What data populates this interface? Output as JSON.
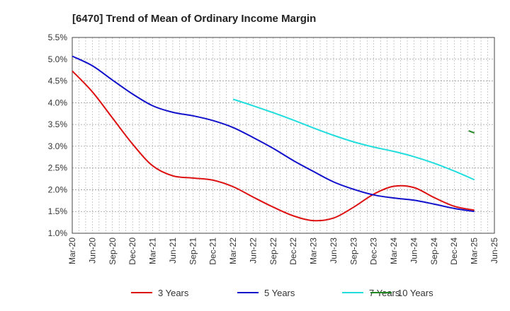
{
  "chart_data": {
    "type": "line",
    "title": "[6470]  Trend of Mean of Ordinary Income Margin",
    "xlabel": "",
    "ylabel": "",
    "ylim": [
      1.0,
      5.5
    ],
    "y_ticks": [
      "1.0%",
      "1.5%",
      "2.0%",
      "2.5%",
      "3.0%",
      "3.5%",
      "4.0%",
      "4.5%",
      "5.0%",
      "5.5%"
    ],
    "y_tick_values": [
      1.0,
      1.5,
      2.0,
      2.5,
      3.0,
      3.5,
      4.0,
      4.5,
      5.0,
      5.5
    ],
    "categories": [
      "Mar-20",
      "Jun-20",
      "Sep-20",
      "Dec-20",
      "Mar-21",
      "Jun-21",
      "Sep-21",
      "Dec-21",
      "Mar-22",
      "Jun-22",
      "Sep-22",
      "Dec-22",
      "Mar-23",
      "Jun-23",
      "Sep-23",
      "Dec-23",
      "Mar-24",
      "Jun-24",
      "Sep-24",
      "Dec-24",
      "Mar-25",
      "Jun-25"
    ],
    "grid": true,
    "legend_position": "bottom",
    "series": [
      {
        "name": "3 Years",
        "color": "#dd1111",
        "values": [
          4.73,
          4.25,
          3.65,
          3.05,
          2.55,
          2.32,
          2.27,
          2.22,
          2.07,
          1.83,
          1.6,
          1.4,
          1.29,
          1.35,
          1.6,
          1.9,
          2.08,
          2.05,
          1.82,
          1.62,
          1.53,
          null
        ]
      },
      {
        "name": "5 Years",
        "color": "#1111cc",
        "values": [
          5.07,
          4.85,
          4.52,
          4.2,
          3.93,
          3.78,
          3.7,
          3.59,
          3.43,
          3.2,
          2.95,
          2.67,
          2.42,
          2.18,
          2.01,
          1.88,
          1.81,
          1.76,
          1.67,
          1.57,
          1.5,
          null
        ]
      },
      {
        "name": "7 Years",
        "color": "#22dddd",
        "values": [
          null,
          null,
          null,
          null,
          null,
          null,
          null,
          null,
          4.08,
          3.93,
          3.77,
          3.6,
          3.42,
          3.25,
          3.1,
          2.98,
          2.88,
          2.76,
          2.61,
          2.43,
          2.23,
          null
        ]
      },
      {
        "name": "10 Years",
        "color": "#228822",
        "values": [
          null,
          null,
          null,
          null,
          null,
          null,
          null,
          null,
          null,
          null,
          null,
          null,
          null,
          null,
          null,
          null,
          null,
          null,
          null,
          null,
          3.33,
          null
        ]
      }
    ]
  }
}
